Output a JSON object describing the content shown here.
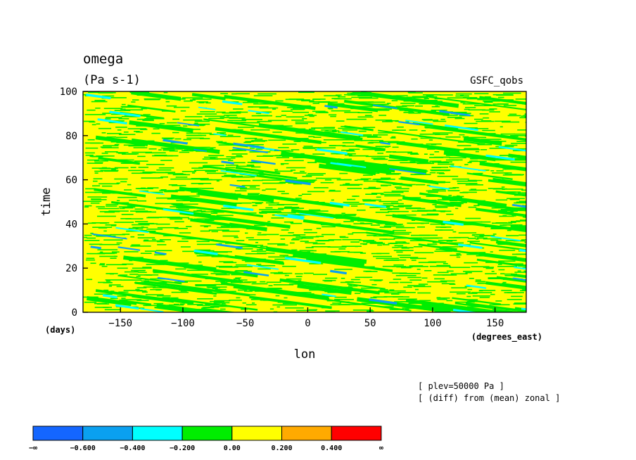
{
  "chart_data": {
    "type": "heatmap",
    "title": "omega",
    "units": "(Pa s-1)",
    "model_label": "GSFC_qobs",
    "xlabel": "lon",
    "x_unit_label": "(degrees_east)",
    "ylabel": "time",
    "y_unit_label": "(days)",
    "xlim": [
      -180,
      175
    ],
    "ylim": [
      0,
      100
    ],
    "x_ticks": [
      -150,
      -100,
      -50,
      0,
      50,
      100,
      150
    ],
    "y_ticks": [
      0,
      20,
      40,
      60,
      80,
      100
    ],
    "notes": [
      "[ plev=50000 Pa ]",
      "[ (diff) from (mean) zonal ]"
    ],
    "colorbar": {
      "colors": [
        "#1466ff",
        "#0aa0f0",
        "#00ffff",
        "#00ee00",
        "#ffff00",
        "#ffaa00",
        "#ff0000"
      ],
      "tick_labels": [
        "-∞",
        "-0.600",
        "-0.400",
        "-0.200",
        "0.00",
        "0.200",
        "0.400",
        "∞"
      ],
      "bounds": [
        -0.6,
        -0.4,
        -0.2,
        0.0,
        0.2,
        0.4
      ]
    },
    "field_description_colors": {
      "dominant": "#ffff00",
      "secondary": "#00ee00",
      "minor": [
        "#00ffff",
        "#0aa0f0"
      ]
    }
  }
}
